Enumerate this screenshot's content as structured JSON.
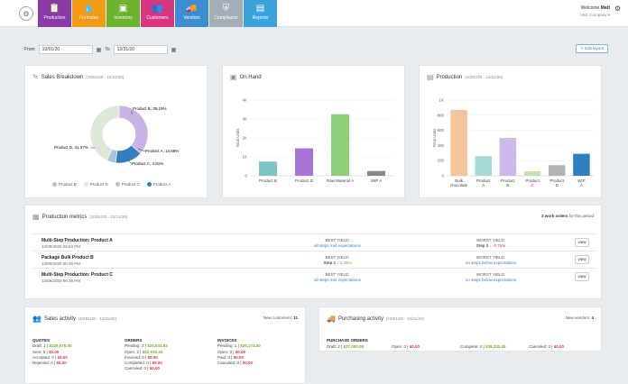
{
  "nav": {
    "tabs": [
      {
        "label": "Production",
        "icon": "clipboard-icon",
        "color": "#8a3aa6"
      },
      {
        "label": "Formulas",
        "icon": "drop-icon",
        "color": "#f29b13"
      },
      {
        "label": "Inventory",
        "icon": "box-icon",
        "color": "#6cb22d"
      },
      {
        "label": "Customers",
        "icon": "people-icon",
        "color": "#d83680"
      },
      {
        "label": "Vendors",
        "icon": "truck-icon",
        "color": "#3d8ed0"
      },
      {
        "label": "Compliance",
        "icon": "shield-icon",
        "color": "#a3aeb8"
      },
      {
        "label": "Reports",
        "icon": "document-icon",
        "color": "#3aa3dd"
      }
    ]
  },
  "user": {
    "welcome": "Welcome ",
    "name": "Matt",
    "company": "ABC Company ▾"
  },
  "dates": {
    "from_label": "From",
    "from_value": "10/01/20",
    "to_label": "To",
    "to_value": "12/31/20",
    "edit_label": "✎ Edit layout"
  },
  "sales_breakdown": {
    "title": "Sales Breakdown",
    "subtitle": "(10/01/20 - 12/31/20)",
    "labels": {
      "b": "Product B, 35.19%",
      "a": "Product A, 14.68%",
      "c": "Product C, 4.81%",
      "d": "Product D, 41.37%"
    },
    "legend": [
      "Product B",
      "Product D",
      "Product C",
      "Product A"
    ]
  },
  "on_hand": {
    "title": "On Hand"
  },
  "production": {
    "title": "Production",
    "subtitle": "(10/01/20 - 12/31/20)"
  },
  "chart_data": [
    {
      "type": "pie",
      "title": "Sales Breakdown",
      "categories": [
        "Product B",
        "Product A",
        "Product C",
        "Product D"
      ],
      "values": [
        35.19,
        14.68,
        4.81,
        41.37
      ],
      "colors": [
        "#c9b3e6",
        "#2f7fc1",
        "#a9c4db",
        "#dde8d6"
      ]
    },
    {
      "type": "bar",
      "title": "On Hand",
      "ylabel": "Total Units",
      "categories": [
        "Product B",
        "Product D",
        "Raw Material A",
        "WIP A"
      ],
      "values": [
        750,
        1450,
        3250,
        250
      ],
      "colors": [
        "#7ec4c4",
        "#a873d8",
        "#8fcf78",
        "#888888"
      ],
      "ylim": [
        0,
        4000
      ],
      "yticks": [
        "0",
        "1K",
        "2K",
        "3K",
        "4K"
      ]
    },
    {
      "type": "bar",
      "title": "Production",
      "ylabel": "Total Units",
      "categories": [
        "Bulk chocolate",
        "Product A",
        "Product B",
        "Product C",
        "Product D",
        "WIP A"
      ],
      "values": [
        870,
        260,
        500,
        60,
        140,
        290
      ],
      "colors": [
        "#f6c49b",
        "#a6dad6",
        "#cdb8ea",
        "#c5e0b1",
        "#b3b3b3",
        "#2f7fc1"
      ],
      "ylim": [
        0,
        1000
      ],
      "yticks": [
        "0",
        "200",
        "400",
        "600",
        "800",
        "1K"
      ]
    }
  ],
  "production_metrics": {
    "title": "Production metrics",
    "subtitle": "(10/01/20 - 12/31/20)",
    "count": "3 work orders",
    "count_suffix": " for this period",
    "rows": [
      {
        "name": "Multi-Step Production: Product A",
        "date": "12/09/2020 06:53 PM",
        "best_label": "BEST YIELD:",
        "best_value": "all steps met expectations",
        "worst_label": "WORST YIELD:",
        "worst_step": "Step 3",
        "worst_value": "↓ -0.75%",
        "view": "view"
      },
      {
        "name": "Package Bulk Product B",
        "date": "12/09/2020 06:49 PM",
        "best_label": "BEST YIELD:",
        "best_step": "Step 1",
        "best_value": "↑ 5.45%",
        "worst_label": "WORST YIELD:",
        "worst_value": "no steps below expectations",
        "view": "view"
      },
      {
        "name": "Multi-Step Production: Product C",
        "date": "12/09/2020 06:35 PM",
        "best_label": "BEST YIELD:",
        "best_value": "all steps met expectations",
        "worst_label": "WORST YIELD:",
        "worst_value": "no steps below expectations",
        "view": "view"
      }
    ]
  },
  "sales_activity": {
    "title": "Sales activity",
    "subtitle": "(10/01/20 - 12/31/20)",
    "new_label": "New customers:",
    "new_value": "11",
    "quotes": {
      "header": "QUOTES",
      "items": [
        [
          "Draft: 1 | ",
          "$329,575.00"
        ],
        [
          "Sent: 0 | ",
          "$0.00"
        ],
        [
          "Accepted: 0 | ",
          "$0.00"
        ],
        [
          "Rejected: 0 | ",
          "$0.00"
        ]
      ]
    },
    "orders": {
      "header": "ORDERS",
      "items": [
        [
          "Pending: 3 | ",
          "$20,641.92"
        ],
        [
          "Open: 2 | ",
          "$62,915.40"
        ],
        [
          "Invoiced: 0 | ",
          "$0.00"
        ],
        [
          "Completed: 0 | ",
          "$0.00"
        ],
        [
          "Canceled: 0 | ",
          "$0.00"
        ]
      ]
    },
    "invoices": {
      "header": "INVOICES",
      "items": [
        [
          "Pending: 1 | ",
          "$26,173.40"
        ],
        [
          "Open: 0 | ",
          "$0.00"
        ],
        [
          "Paid: 0 | ",
          "$0.00"
        ],
        [
          "Canceled: 0 | ",
          "$0.00"
        ]
      ]
    }
  },
  "purchasing": {
    "title": "Purchasing activity",
    "subtitle": "(10/01/20 - 12/31/20)",
    "new_label": "New vendors:",
    "new_value": "4",
    "header": "PURCHASE ORDERS",
    "items": [
      [
        "Draft: 2 | ",
        "$27,000.00"
      ],
      [
        "Open: 0 | ",
        "$0.00"
      ],
      [
        "Complete: 2 | ",
        "$29,233.45"
      ],
      [
        "Canceled: 0 | ",
        "$0.00"
      ]
    ]
  }
}
